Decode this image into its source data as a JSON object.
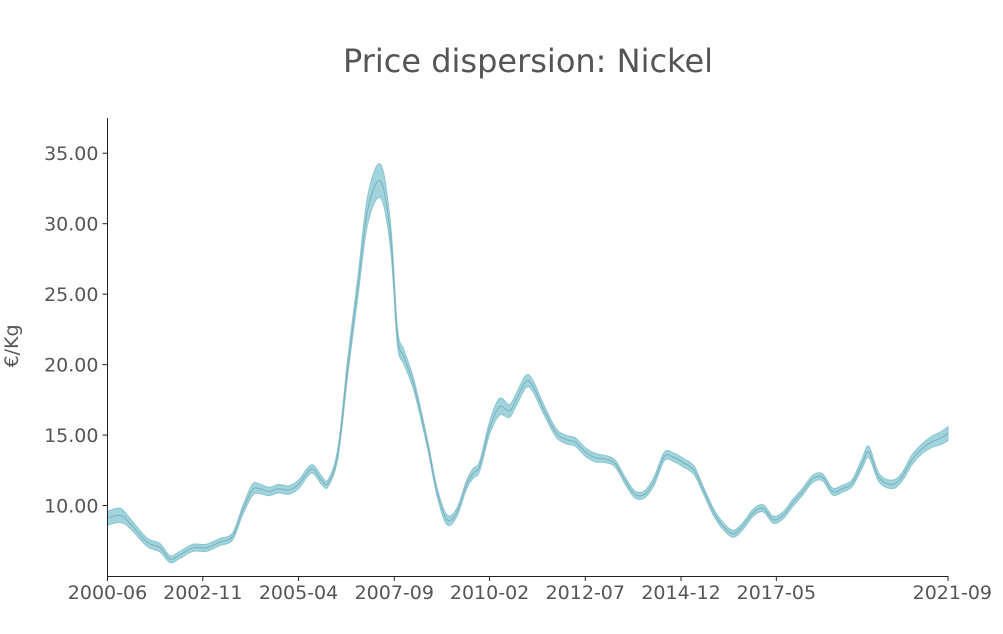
{
  "chart_data": {
    "type": "area",
    "title": "Price dispersion: Nickel",
    "xlabel": "",
    "ylabel": "€/Kg",
    "x_tick_labels": [
      "2000-06",
      "2002-11",
      "2005-04",
      "2007-09",
      "2010-02",
      "2012-07",
      "2014-12",
      "2017-05",
      "2021-09"
    ],
    "x_tick_values": [
      2000.42,
      2002.83,
      2005.25,
      2007.67,
      2010.08,
      2012.5,
      2014.92,
      2017.33,
      2021.67
    ],
    "y_tick_labels": [
      "10.00",
      "15.00",
      "20.00",
      "25.00",
      "30.00",
      "35.00"
    ],
    "y_tick_values": [
      10,
      15,
      20,
      25,
      30,
      35
    ],
    "xlim": [
      2000.42,
      2021.67
    ],
    "ylim": [
      5,
      37.5
    ],
    "grid": false,
    "colors": {
      "band_fill": "#9fd4dd",
      "band_edge": "#8cc6d2",
      "median_line": "#6f9fa9"
    },
    "series": [
      {
        "x": [
          2000.42,
          2000.75,
          2001.0,
          2001.42,
          2001.75,
          2002.0,
          2002.25,
          2002.58,
          2002.92,
          2003.25,
          2003.58,
          2003.83,
          2004.08,
          2004.25,
          2004.5,
          2004.75,
          2005.0,
          2005.25,
          2005.58,
          2005.83,
          2006.0,
          2006.25,
          2006.5,
          2006.75,
          2007.0,
          2007.33,
          2007.58,
          2007.75,
          2007.92,
          2008.17,
          2008.5,
          2008.75,
          2009.0,
          2009.25,
          2009.5,
          2009.67,
          2009.83,
          2010.08,
          2010.33,
          2010.58,
          2010.75,
          2011.0,
          2011.17,
          2011.42,
          2011.75,
          2012.0,
          2012.25,
          2012.5,
          2012.75,
          2013.0,
          2013.25,
          2013.5,
          2013.75,
          2014.0,
          2014.25,
          2014.5,
          2014.75,
          2015.0,
          2015.25,
          2015.5,
          2015.75,
          2016.0,
          2016.25,
          2016.5,
          2016.75,
          2017.0,
          2017.25,
          2017.5,
          2017.75,
          2018.0,
          2018.25,
          2018.5,
          2018.75,
          2019.0,
          2019.25,
          2019.5,
          2019.67,
          2019.92,
          2020.25,
          2020.5,
          2020.75,
          2021.0,
          2021.25,
          2021.5,
          2021.67
        ],
        "median": [
          9.1,
          9.3,
          8.7,
          7.4,
          7.0,
          6.2,
          6.5,
          7.0,
          7.0,
          7.4,
          7.8,
          9.6,
          11.1,
          11.2,
          11.0,
          11.2,
          11.1,
          11.5,
          12.6,
          11.8,
          11.6,
          13.8,
          20.0,
          25.5,
          31.0,
          33.0,
          29.0,
          22.0,
          20.5,
          18.5,
          14.5,
          11.0,
          9.0,
          9.5,
          11.5,
          12.3,
          12.8,
          15.5,
          17.0,
          16.7,
          17.5,
          18.8,
          18.5,
          17.0,
          15.2,
          14.7,
          14.5,
          13.8,
          13.4,
          13.3,
          13.0,
          11.8,
          10.8,
          10.8,
          11.8,
          13.5,
          13.4,
          13.0,
          12.5,
          11.0,
          9.5,
          8.5,
          8.0,
          8.6,
          9.5,
          9.8,
          9.0,
          9.3,
          10.2,
          11.0,
          11.9,
          12.0,
          11.0,
          11.2,
          11.6,
          13.0,
          13.8,
          12.0,
          11.5,
          12.0,
          13.2,
          14.0,
          14.5,
          14.8,
          15.1
        ],
        "band_half_width": [
          0.5,
          0.5,
          0.35,
          0.3,
          0.3,
          0.25,
          0.25,
          0.25,
          0.25,
          0.25,
          0.25,
          0.3,
          0.4,
          0.35,
          0.3,
          0.3,
          0.3,
          0.3,
          0.3,
          0.3,
          0.25,
          0.35,
          0.6,
          0.7,
          1.0,
          1.2,
          0.9,
          0.6,
          0.5,
          0.4,
          0.3,
          0.3,
          0.35,
          0.3,
          0.3,
          0.35,
          0.35,
          0.45,
          0.6,
          0.45,
          0.45,
          0.45,
          0.4,
          0.35,
          0.3,
          0.3,
          0.3,
          0.3,
          0.3,
          0.25,
          0.25,
          0.25,
          0.25,
          0.25,
          0.3,
          0.3,
          0.3,
          0.3,
          0.3,
          0.25,
          0.25,
          0.25,
          0.25,
          0.25,
          0.25,
          0.25,
          0.25,
          0.25,
          0.25,
          0.25,
          0.25,
          0.25,
          0.25,
          0.25,
          0.25,
          0.35,
          0.4,
          0.3,
          0.3,
          0.3,
          0.35,
          0.35,
          0.4,
          0.45,
          0.5
        ]
      }
    ]
  }
}
